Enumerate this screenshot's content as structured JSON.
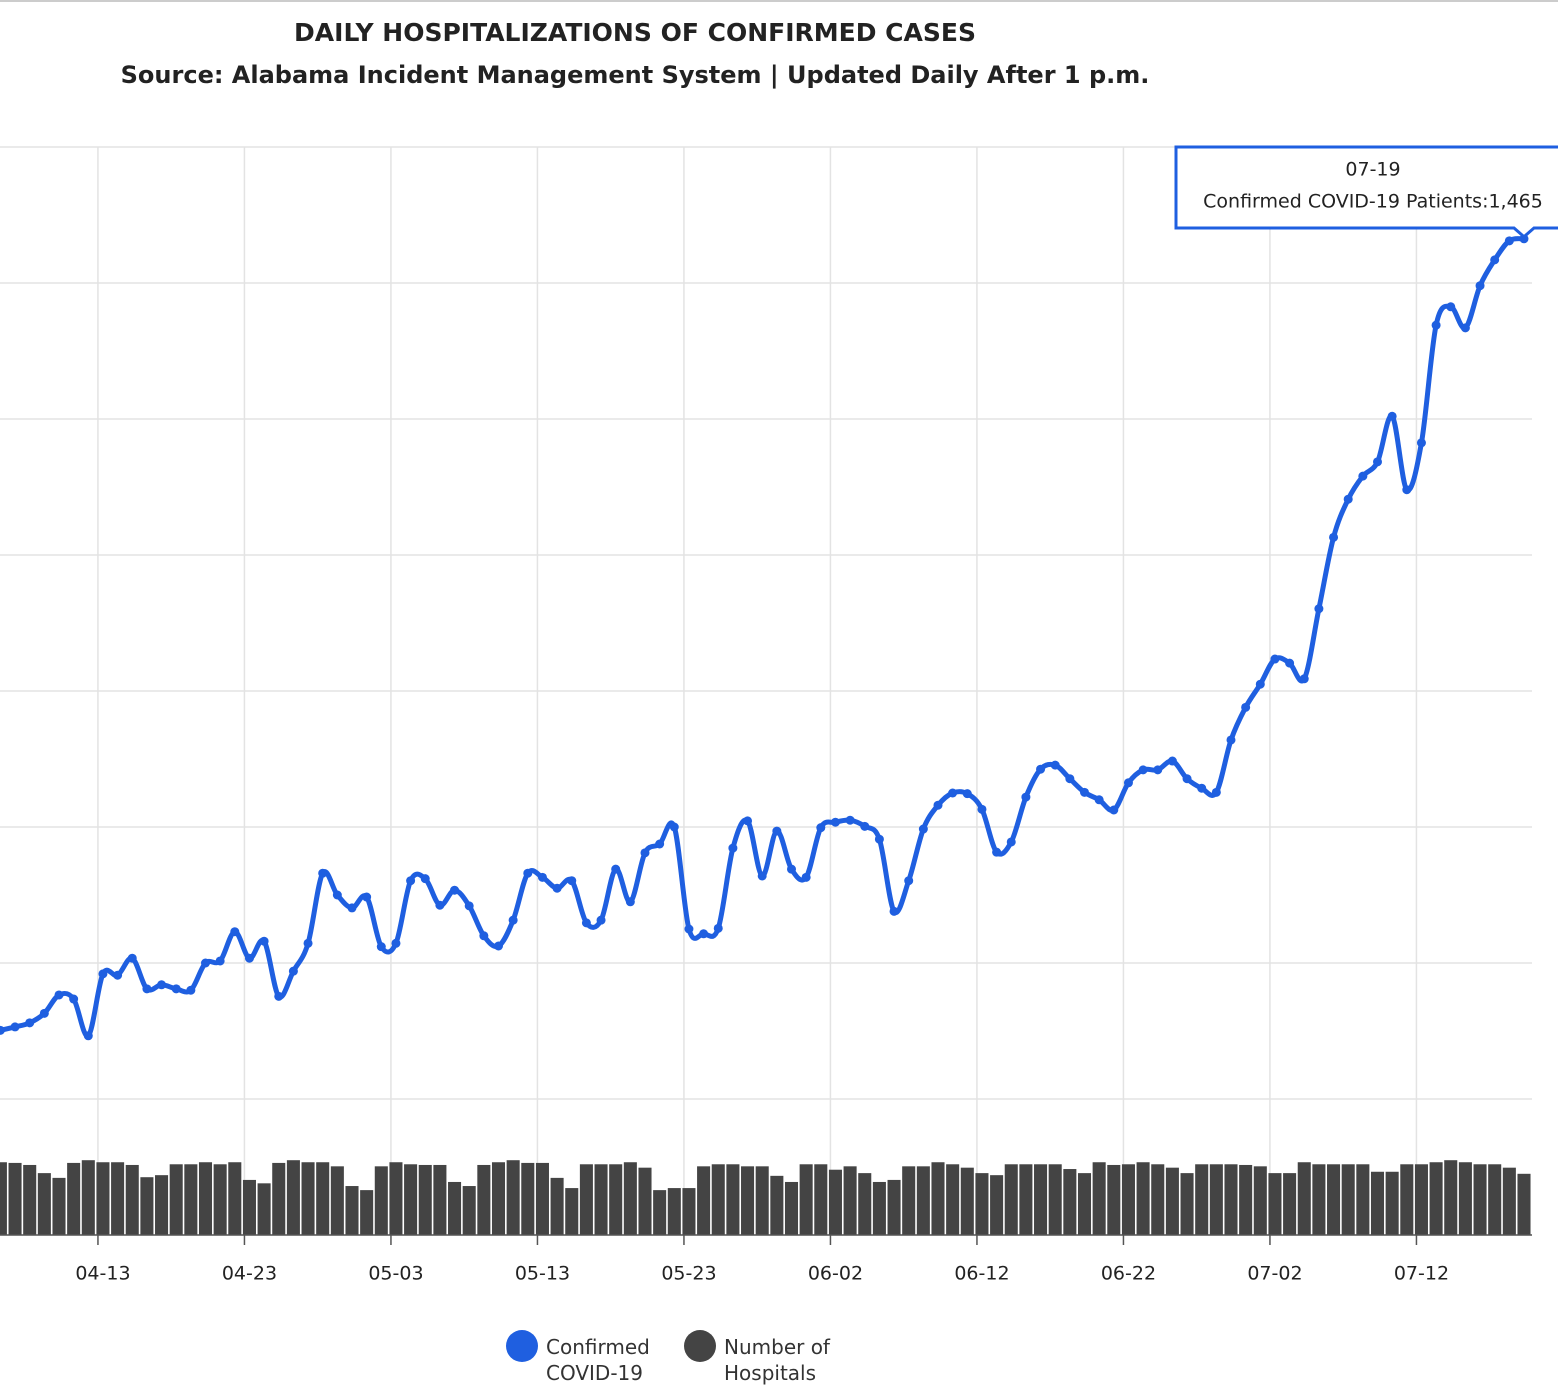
{
  "chart_data": {
    "type": "line",
    "title": "DAILY HOSPITALIZATIONS OF CONFIRMED CASES",
    "subtitle": "Source: Alabama Incident Management System | Updated Daily After 1 p.m.",
    "categories": [
      null,
      null,
      null,
      null,
      null,
      null,
      null,
      "04-13",
      null,
      null,
      null,
      null,
      null,
      null,
      null,
      null,
      null,
      "04-23",
      null,
      null,
      null,
      null,
      null,
      null,
      null,
      null,
      null,
      "05-03",
      null,
      null,
      null,
      null,
      null,
      null,
      null,
      null,
      null,
      "05-13",
      null,
      null,
      null,
      null,
      null,
      null,
      null,
      null,
      null,
      "05-23",
      null,
      null,
      null,
      null,
      null,
      null,
      null,
      null,
      null,
      "06-02",
      null,
      null,
      null,
      null,
      null,
      null,
      null,
      null,
      null,
      "06-12",
      null,
      null,
      null,
      null,
      null,
      null,
      null,
      null,
      null,
      "06-22",
      null,
      null,
      null,
      null,
      null,
      null,
      null,
      null,
      null,
      "07-02",
      null,
      null,
      null,
      null,
      null,
      null,
      null,
      null,
      null,
      "07-12",
      null,
      null,
      null,
      null,
      null,
      null,
      null
    ],
    "series": [
      {
        "name": "Confirmed COVID-19",
        "type": "line",
        "color": "#1f5fe0",
        "values": [
          301,
          306,
          312,
          326,
          353,
          347,
          293,
          384,
          382,
          407,
          362,
          368,
          362,
          360,
          400,
          403,
          446,
          407,
          432,
          351,
          388,
          429,
          532,
          500,
          481,
          497,
          424,
          429,
          521,
          524,
          485,
          507,
          484,
          440,
          425,
          463,
          532,
          526,
          510,
          521,
          459,
          463,
          538,
          490,
          562,
          575,
          600,
          450,
          443,
          451,
          569,
          609,
          528,
          594,
          538,
          526,
          599,
          607,
          610,
          601,
          582,
          476,
          521,
          597,
          632,
          650,
          649,
          626,
          563,
          578,
          644,
          685,
          691,
          671,
          651,
          640,
          625,
          665,
          684,
          684,
          697,
          671,
          657,
          651,
          728,
          776,
          810,
          847,
          841,
          818,
          921,
          1026,
          1082,
          1116,
          1137,
          1204,
          1096,
          1165,
          1338,
          1365,
          1334,
          1396,
          1434,
          1462,
          1465
        ]
      },
      {
        "name": "Number of Hospitals",
        "type": "bar",
        "color": "#444444",
        "values": [
          107,
          106,
          103,
          91,
          84,
          106,
          110,
          107,
          107,
          103,
          85,
          88,
          104,
          104,
          107,
          104,
          107,
          81,
          76,
          106,
          110,
          107,
          107,
          101,
          72,
          66,
          101,
          107,
          104,
          103,
          103,
          78,
          72,
          103,
          107,
          110,
          106,
          106,
          84,
          69,
          104,
          104,
          104,
          107,
          99,
          66,
          69,
          69,
          101,
          104,
          104,
          101,
          101,
          87,
          78,
          104,
          104,
          96,
          101,
          91,
          78,
          81,
          101,
          101,
          107,
          104,
          99,
          91,
          88,
          104,
          104,
          104,
          104,
          97,
          91,
          107,
          103,
          104,
          107,
          104,
          99,
          91,
          104,
          104,
          104,
          103,
          101,
          91,
          91,
          107,
          104,
          104,
          104,
          104,
          93,
          93,
          104,
          104,
          107,
          110,
          107,
          104,
          104,
          99,
          90
        ]
      }
    ],
    "ylim": [
      0,
      1600
    ],
    "yticks": [
      0,
      200,
      400,
      600,
      800,
      1000,
      1200,
      1400,
      1600
    ],
    "grid": true,
    "legend": "bottom",
    "tooltip": {
      "title": "07-19",
      "text": "Confirmed COVID-19 Patients:1,465"
    }
  }
}
